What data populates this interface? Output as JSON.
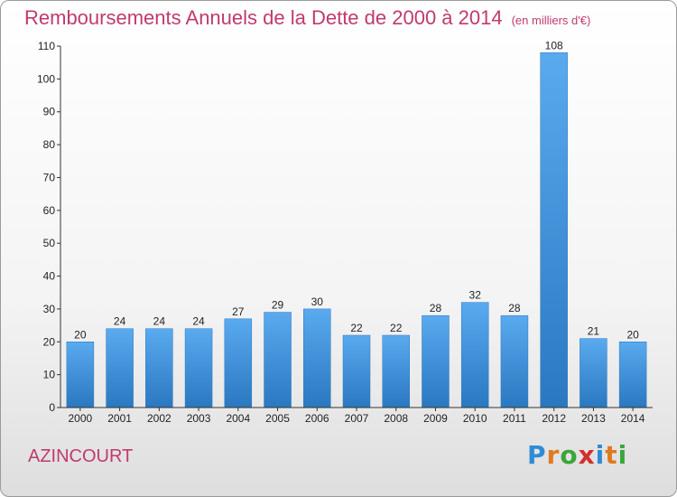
{
  "header": {
    "title": "Remboursements Annuels de la Dette de 2000 à 2014",
    "unit": "(en milliers d'€)"
  },
  "commune": "AZINCOURT",
  "logo": {
    "letters": [
      "P",
      "r",
      "o",
      "x",
      "i",
      "t",
      "i"
    ],
    "colors": [
      "#2e8bd6",
      "#e07a1f",
      "#3aa63a",
      "#d42e2e",
      "#2e8bd6",
      "#e07a1f",
      "#3aa63a"
    ]
  },
  "chart_data": {
    "type": "bar",
    "title": "Remboursements Annuels de la Dette de 2000 à 2014",
    "xlabel": "",
    "ylabel": "",
    "categories": [
      "2000",
      "2001",
      "2002",
      "2003",
      "2004",
      "2005",
      "2006",
      "2007",
      "2008",
      "2009",
      "2010",
      "2011",
      "2012",
      "2013",
      "2014"
    ],
    "values": [
      20,
      24,
      24,
      24,
      27,
      29,
      30,
      22,
      22,
      28,
      32,
      28,
      108,
      21,
      20
    ],
    "ylim": [
      0,
      110
    ],
    "yticks": [
      0,
      10,
      20,
      30,
      40,
      50,
      60,
      70,
      80,
      90,
      100,
      110
    ],
    "grid": false,
    "bar_color": "#3f93d9"
  }
}
